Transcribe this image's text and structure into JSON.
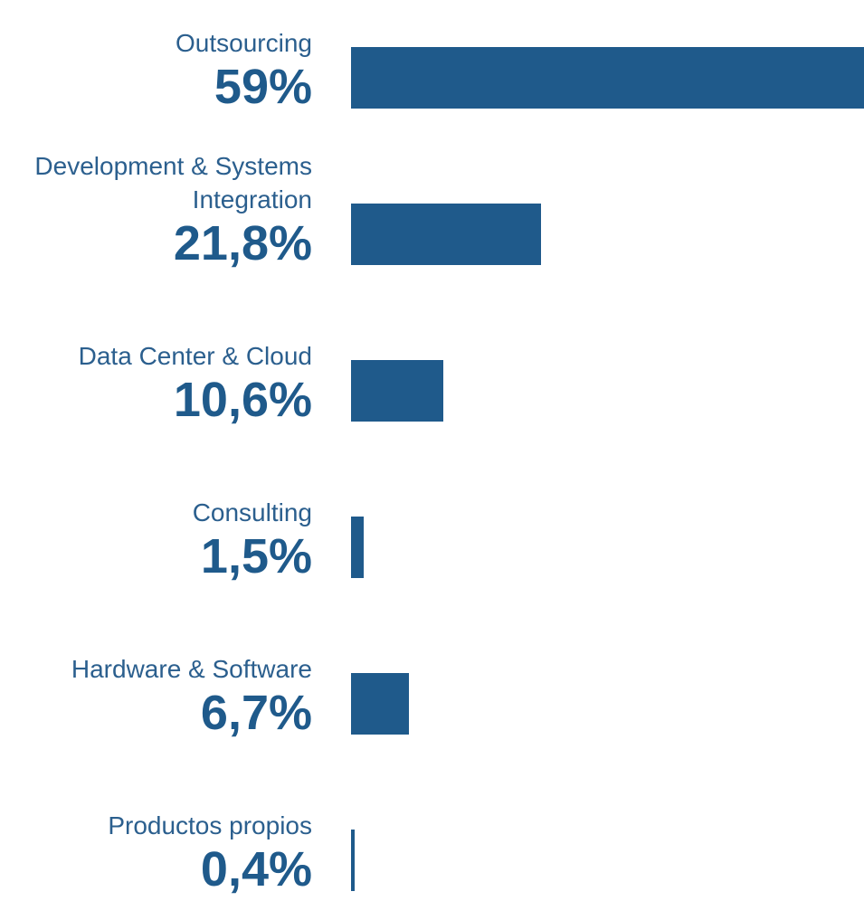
{
  "chart_data": {
    "type": "bar",
    "orientation": "horizontal",
    "color": "#1f5a8b",
    "categories": [
      "Outsourcing",
      "Development & Systems Integration",
      "Data Center & Cloud",
      "Consulting",
      "Hardware & Software",
      "Productos propios"
    ],
    "values": [
      59,
      21.8,
      10.6,
      1.5,
      6.7,
      0.4
    ],
    "value_labels": [
      "59%",
      "21,8%",
      "10,6%",
      "1,5%",
      "6,7%",
      "0,4%"
    ]
  }
}
